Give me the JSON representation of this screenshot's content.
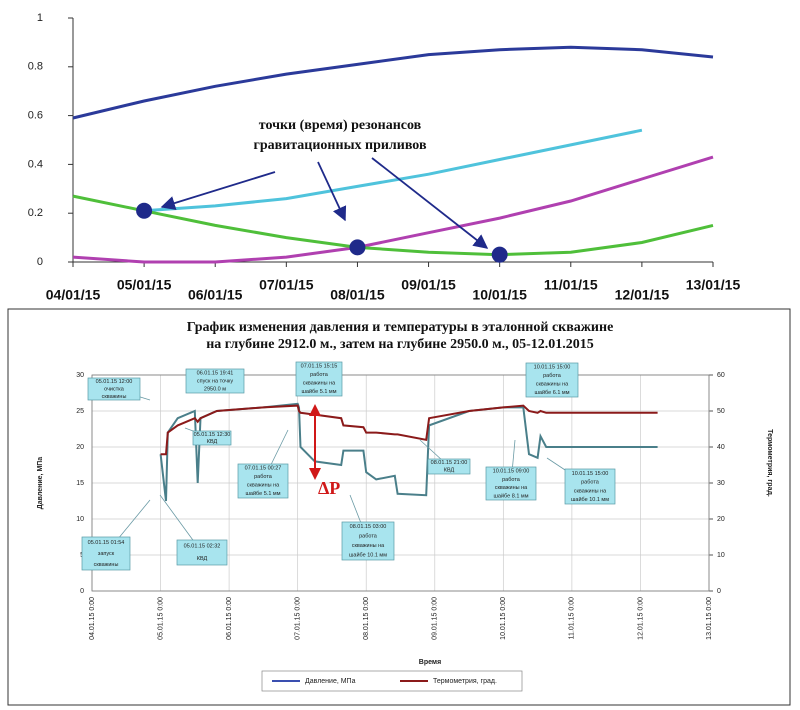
{
  "chart_data": [
    {
      "type": "line",
      "annotation": [
        "точки (время) резонансов",
        "гравитационных приливов"
      ],
      "categories": [
        "04/01/15",
        "05/01/15",
        "06/01/15",
        "07/01/15",
        "08/01/15",
        "09/01/15",
        "10/01/15",
        "11/01/15",
        "12/01/15",
        "13/01/15"
      ],
      "series": [
        {
          "color": "#2b3a9a",
          "values": [
            0.59,
            0.66,
            0.72,
            0.77,
            0.81,
            0.85,
            0.87,
            0.88,
            0.87,
            0.84
          ]
        },
        {
          "color": "#4fc3dc",
          "values": [
            null,
            0.21,
            0.23,
            0.26,
            0.31,
            0.36,
            0.42,
            0.48,
            0.54,
            null
          ]
        },
        {
          "color": "#b040b0",
          "values": [
            0.02,
            0.0,
            0.0,
            0.02,
            0.06,
            0.12,
            0.18,
            0.25,
            0.34,
            0.43
          ]
        },
        {
          "color": "#4fbf3a",
          "values": [
            0.27,
            0.21,
            0.15,
            0.1,
            0.06,
            0.04,
            0.03,
            0.04,
            0.08,
            0.15
          ]
        }
      ],
      "markers": {
        "color": "#1f2a8a",
        "values": [
          null,
          0.21,
          null,
          null,
          0.06,
          null,
          0.03,
          null,
          null,
          null
        ]
      },
      "ylim": [
        0,
        1
      ],
      "yticks": [
        0,
        0.2,
        0.4,
        0.6,
        0.8,
        1
      ]
    },
    {
      "type": "line",
      "title": [
        "График изменения давления и температуры в эталонной скважине",
        "на глубине 2912.0 м., затем на глубине 2950.0 м., 05-12.01.2015"
      ],
      "x": [
        "05.01.15 0:00",
        "05.01.15 1:54",
        "05.01.15 2:32",
        "05.01.15 6:00",
        "05.01.15 12:00",
        "05.01.15 13:00",
        "05.01.15 14:00",
        "05.01.15 19:41",
        "06.01.15 12:00",
        "07.01.15 0:00",
        "07.01.15 0:27",
        "07.01.15 1:00",
        "07.01.15 6:00",
        "07.01.15 15:15",
        "07.01.15 16:00",
        "07.01.15 23:00",
        "08.01.15 0:00",
        "08.01.15 3:30",
        "08.01.15 10:00",
        "08.01.15 11:00",
        "08.01.15 21:00",
        "08.01.15 22:00",
        "09.01.15 12:00",
        "10.01.15 0:00",
        "10.01.15 7:00",
        "10.01.15 9:00",
        "10.01.15 12:00",
        "10.01.15 13:00",
        "10.01.15 15:00",
        "11.01.15 0:00",
        "12.01.15 6:00"
      ],
      "series": [
        {
          "name": "Давление, МПа",
          "color": "#3a4fb0",
          "plot_color": "#4a7f8a",
          "values": [
            19,
            12.5,
            22,
            24,
            25,
            15,
            24,
            25,
            25.5,
            26,
            25.5,
            20,
            18,
            17.5,
            19.5,
            19.5,
            16.5,
            15.5,
            16,
            13.5,
            13.3,
            23,
            25,
            25.5,
            25.5,
            19,
            18.5,
            21.5,
            20,
            20,
            20
          ]
        },
        {
          "name": "Термометрия, град.",
          "color": "#8b1a1a",
          "axis": "y2",
          "values": [
            38,
            38,
            44,
            46,
            48,
            47,
            48,
            50,
            51,
            51.5,
            50,
            49.5,
            49,
            48,
            46,
            45.5,
            44,
            44,
            43.5,
            43.5,
            42,
            48,
            50,
            51,
            51.5,
            50,
            49.5,
            50,
            49.5,
            49.5,
            49.5
          ]
        }
      ],
      "xlim": [
        "04.01.15 0:00",
        "13.01.15 0:00"
      ],
      "xticks": [
        "04.01.15 0:00",
        "05.01.15 0:00",
        "06.01.15 0:00",
        "07.01.15 0:00",
        "08.01.15 0:00",
        "09.01.15 0:00",
        "10.01.15 0:00",
        "11.01.15 0:00",
        "12.01.15 0:00",
        "13.01.15 0:00"
      ],
      "ylim": [
        0,
        30
      ],
      "yticks": [
        0,
        5,
        10,
        15,
        20,
        25,
        30
      ],
      "y2lim": [
        0,
        60
      ],
      "y2ticks": [
        0,
        10,
        20,
        30,
        40,
        50,
        60
      ],
      "ylabel": "Давление, МПа",
      "y2label": "Термометрия, град.",
      "xlabel": "Время",
      "grid": true,
      "callouts": [
        [
          "05.01.15 12:00",
          "очистка",
          "скважины"
        ],
        [
          "06.01.15 19:41",
          "спуск на точку",
          "2950.0 м"
        ],
        [
          "07.01.15 15:15",
          "работа",
          "скважины на",
          "шайбе 5.1 мм"
        ],
        [
          "10.01.15 15:00",
          "работа",
          "скважины на",
          "шайбе 6.1 мм"
        ],
        [
          "05.01.15 12:30",
          "КВД"
        ],
        [
          "07.01.15 00:27",
          "работа",
          "скважины на",
          "шайбе 5.1 мм"
        ],
        [
          "08.01.15 21:00",
          "КВД"
        ],
        [
          "10.01.15 09:00",
          "работа",
          "скважины на",
          "шайбе 8.1 мм"
        ],
        [
          "10.01.15 15:00",
          "работа",
          "скважины на",
          "шайбе 10.1 мм"
        ],
        [
          "08.01.15 03:00",
          "работа",
          "скважины на",
          "шайбе 10.1 мм"
        ],
        [
          "05.01.15 01:54",
          "запуск",
          "скважины"
        ],
        [
          "05.01.15 02:32",
          "КВД"
        ]
      ],
      "delta_label": "ΔP"
    }
  ]
}
